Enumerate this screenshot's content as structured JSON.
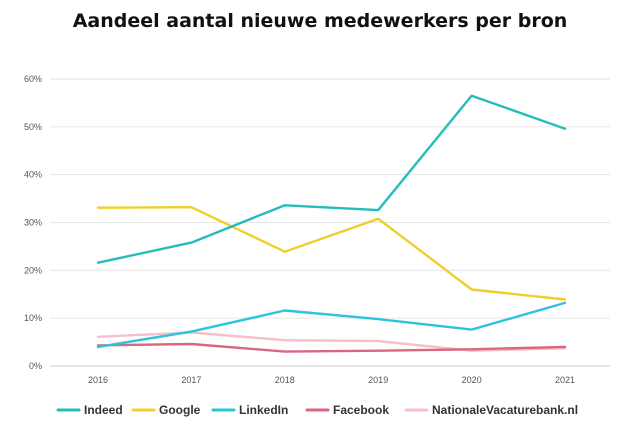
{
  "chart_data": {
    "type": "line",
    "title": "Aandeel aantal nieuwe medewerkers per bron",
    "xlabel": "",
    "ylabel": "",
    "categories": [
      "2016",
      "2017",
      "2018",
      "2019",
      "2020",
      "2021"
    ],
    "ylim": [
      0,
      60
    ],
    "yticks": [
      0,
      10,
      20,
      30,
      40,
      50,
      60
    ],
    "ytick_labels": [
      "0%",
      "10%",
      "20%",
      "30%",
      "40%",
      "50%",
      "60%"
    ],
    "grid": true,
    "legend_position": "bottom",
    "series": [
      {
        "name": "Indeed",
        "color": "#26bdb8",
        "values": [
          21.6,
          25.8,
          33.6,
          32.6,
          56.5,
          49.6
        ]
      },
      {
        "name": "Google",
        "color": "#f0cf2a",
        "values": [
          33.1,
          33.2,
          23.9,
          30.8,
          16.0,
          13.9
        ]
      },
      {
        "name": "LinkedIn",
        "color": "#2cc3dc",
        "values": [
          4.0,
          7.2,
          11.6,
          9.8,
          7.6,
          13.2
        ]
      },
      {
        "name": "Facebook",
        "color": "#d9677e",
        "values": [
          4.3,
          4.6,
          3.0,
          3.2,
          3.5,
          4.0
        ]
      },
      {
        "name": "NationaleVacaturebank.nl",
        "color": "#f5c0cc",
        "values": [
          6.1,
          7.0,
          5.4,
          5.2,
          3.2,
          3.7
        ]
      }
    ]
  }
}
